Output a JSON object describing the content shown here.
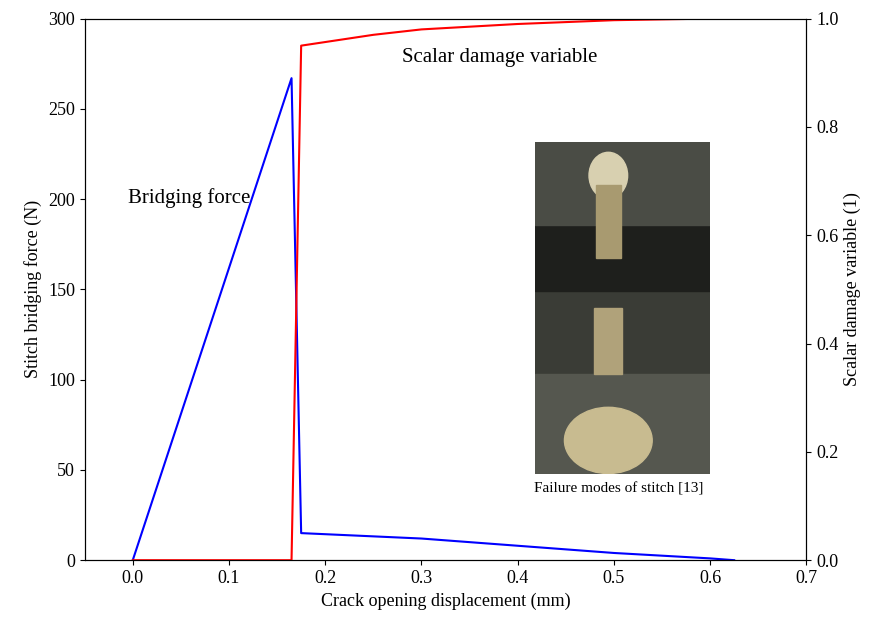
{
  "chart_data": {
    "type": "line",
    "x_label": "Crack opening displacement (mm)",
    "y_label": "Stitch bridging force (N)",
    "y2_label": "Scalar damage variable (1)",
    "annotations": [
      "Bridging force",
      "Scalar damage variable",
      "Failure modes of stitch [13]"
    ],
    "xlim": [
      -0.05,
      0.7
    ],
    "xticks": [
      {
        "value": 0,
        "label": "0.0"
      },
      0.1,
      0.2,
      0.3,
      0.4,
      0.5,
      0.6,
      0.7
    ],
    "ylim": [
      0,
      300
    ],
    "yticks": [
      0,
      50,
      100,
      150,
      200,
      250,
      300
    ],
    "y2lim": [
      0,
      1.0
    ],
    "y2ticks": [
      {
        "value": 0,
        "label": "0.0"
      },
      0.2,
      0.4,
      0.6,
      0.8,
      1.0
    ],
    "series": [
      {
        "name": "Bridging force",
        "color": "#0000ff",
        "axis": "y",
        "x": [
          0,
          0.165,
          0.175,
          0.3,
          0.4,
          0.5,
          0.6,
          0.625
        ],
        "values": [
          0,
          267,
          15,
          12,
          8,
          4,
          1,
          0
        ]
      },
      {
        "name": "Scalar damage variable",
        "color": "#ff0000",
        "axis": "y2",
        "x": [
          0,
          0.165,
          0.175,
          0.25,
          0.3,
          0.4,
          0.5,
          0.6,
          0.625
        ],
        "values": [
          0,
          0,
          0.95,
          0.97,
          0.98,
          0.99,
          0.997,
          1.0,
          1.0
        ]
      }
    ]
  }
}
